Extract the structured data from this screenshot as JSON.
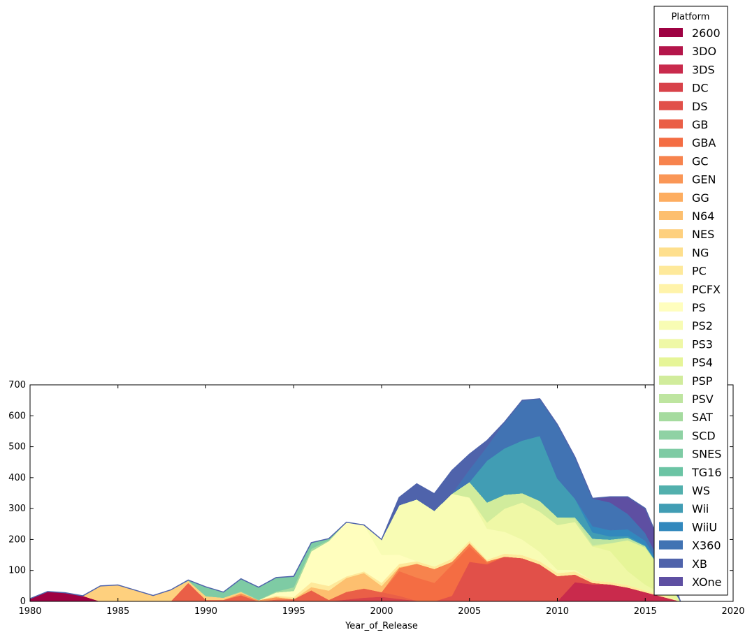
{
  "chart_data": {
    "type": "area",
    "stacked": true,
    "xlabel": "Year_of_Release",
    "ylabel": "",
    "xlim": [
      1980,
      2020
    ],
    "ylim": [
      0,
      700
    ],
    "x_ticks": [
      "1980",
      "1985",
      "1990",
      "1995",
      "2000",
      "2005",
      "2010",
      "2015",
      "2020"
    ],
    "y_ticks": [
      "0",
      "100",
      "200",
      "300",
      "400",
      "500",
      "600",
      "700"
    ],
    "grid": false,
    "legend": {
      "title": "Platform",
      "placement": "top-right"
    },
    "x": [
      1980,
      1981,
      1982,
      1983,
      1984,
      1985,
      1986,
      1987,
      1988,
      1989,
      1990,
      1991,
      1992,
      1993,
      1994,
      1995,
      1996,
      1997,
      1998,
      1999,
      2000,
      2001,
      2002,
      2003,
      2004,
      2005,
      2006,
      2007,
      2008,
      2009,
      2010,
      2011,
      2012,
      2013,
      2014,
      2015,
      2016,
      2017
    ],
    "series": [
      {
        "name": "2600",
        "color": "#9e0142",
        "values": [
          9,
          32,
          28,
          18,
          0,
          0,
          0,
          0,
          0,
          0,
          0,
          0,
          0,
          0,
          0,
          0,
          0,
          0,
          0,
          0,
          0,
          0,
          0,
          0,
          0,
          0,
          0,
          0,
          0,
          0,
          0,
          0,
          0,
          0,
          0,
          0,
          0,
          0
        ]
      },
      {
        "name": "3DO",
        "color": "#b4154a",
        "values": [
          0,
          0,
          0,
          0,
          0,
          0,
          0,
          0,
          0,
          0,
          0,
          0,
          0,
          0,
          1,
          2,
          1,
          0,
          0,
          0,
          0,
          0,
          0,
          0,
          0,
          0,
          0,
          0,
          0,
          0,
          0,
          0,
          0,
          0,
          0,
          0,
          0,
          0
        ]
      },
      {
        "name": "3DS",
        "color": "#c92a4c",
        "values": [
          0,
          0,
          0,
          0,
          0,
          0,
          0,
          0,
          0,
          0,
          0,
          0,
          0,
          0,
          0,
          0,
          0,
          0,
          0,
          0,
          0,
          0,
          0,
          0,
          0,
          0,
          0,
          0,
          0,
          0,
          0,
          62,
          55,
          55,
          45,
          30,
          15,
          0
        ]
      },
      {
        "name": "DC",
        "color": "#d8424a",
        "values": [
          0,
          0,
          0,
          0,
          0,
          0,
          0,
          0,
          0,
          0,
          0,
          0,
          0,
          0,
          0,
          0,
          0,
          0,
          6,
          12,
          15,
          8,
          2,
          0,
          0,
          0,
          0,
          0,
          0,
          0,
          0,
          0,
          0,
          0,
          0,
          0,
          0,
          0
        ]
      },
      {
        "name": "DS",
        "color": "#e15049",
        "values": [
          0,
          0,
          0,
          0,
          0,
          0,
          0,
          0,
          0,
          0,
          0,
          0,
          0,
          0,
          0,
          0,
          0,
          0,
          0,
          0,
          0,
          0,
          0,
          0,
          18,
          128,
          120,
          145,
          140,
          120,
          82,
          25,
          5,
          0,
          0,
          0,
          0,
          0
        ]
      },
      {
        "name": "GB",
        "color": "#ea5f47",
        "values": [
          0,
          0,
          0,
          0,
          0,
          0,
          0,
          0,
          0,
          60,
          5,
          5,
          20,
          0,
          5,
          5,
          35,
          5,
          25,
          30,
          15,
          10,
          0,
          0,
          0,
          0,
          0,
          0,
          0,
          0,
          0,
          0,
          0,
          0,
          0,
          0,
          0,
          0
        ]
      },
      {
        "name": "GBA",
        "color": "#f46d43",
        "values": [
          0,
          0,
          0,
          0,
          0,
          0,
          0,
          0,
          0,
          0,
          0,
          0,
          0,
          0,
          0,
          0,
          0,
          0,
          0,
          0,
          0,
          80,
          75,
          60,
          100,
          50,
          5,
          0,
          0,
          0,
          0,
          0,
          0,
          0,
          0,
          0,
          0,
          0
        ]
      },
      {
        "name": "GC",
        "color": "#f7834d",
        "values": [
          0,
          0,
          0,
          0,
          0,
          0,
          0,
          0,
          0,
          0,
          0,
          0,
          0,
          0,
          0,
          0,
          0,
          0,
          0,
          0,
          0,
          10,
          45,
          45,
          10,
          10,
          5,
          0,
          0,
          0,
          0,
          0,
          0,
          0,
          0,
          0,
          0,
          0
        ]
      },
      {
        "name": "GEN",
        "color": "#fa9656",
        "values": [
          0,
          0,
          0,
          0,
          0,
          0,
          0,
          0,
          0,
          0,
          0,
          0,
          6,
          4,
          8,
          0,
          0,
          0,
          0,
          0,
          0,
          0,
          0,
          0,
          0,
          0,
          0,
          0,
          0,
          0,
          0,
          0,
          0,
          0,
          0,
          0,
          0,
          0
        ]
      },
      {
        "name": "GG",
        "color": "#fdad60",
        "values": [
          0,
          0,
          0,
          0,
          0,
          0,
          0,
          0,
          0,
          0,
          0,
          0,
          0,
          0,
          0,
          0,
          0,
          0,
          0,
          0,
          0,
          0,
          0,
          0,
          0,
          0,
          0,
          0,
          0,
          0,
          0,
          0,
          0,
          0,
          0,
          0,
          0,
          0
        ]
      },
      {
        "name": "N64",
        "color": "#fdbf6f",
        "values": [
          0,
          0,
          0,
          0,
          0,
          0,
          0,
          0,
          0,
          0,
          0,
          0,
          0,
          0,
          0,
          0,
          10,
          30,
          45,
          50,
          20,
          3,
          0,
          0,
          0,
          0,
          0,
          0,
          0,
          0,
          0,
          0,
          0,
          0,
          0,
          0,
          0,
          0
        ]
      },
      {
        "name": "NES",
        "color": "#fed07e",
        "values": [
          0,
          0,
          0,
          0,
          50,
          53,
          36,
          19,
          37,
          7,
          12,
          7,
          5,
          0,
          0,
          0,
          0,
          0,
          0,
          0,
          0,
          0,
          0,
          0,
          0,
          0,
          0,
          0,
          0,
          0,
          0,
          0,
          0,
          0,
          0,
          0,
          0,
          0
        ]
      },
      {
        "name": "NG",
        "color": "#fedf8d",
        "values": [
          0,
          0,
          0,
          0,
          0,
          0,
          0,
          0,
          0,
          0,
          0,
          0,
          0,
          0,
          2,
          2,
          1,
          0,
          0,
          0,
          0,
          0,
          0,
          0,
          0,
          0,
          0,
          0,
          0,
          0,
          0,
          0,
          0,
          0,
          0,
          0,
          0,
          0
        ]
      },
      {
        "name": "PC",
        "color": "#fee99b",
        "values": [
          0,
          0,
          0,
          0,
          0,
          0,
          0,
          0,
          0,
          0,
          0,
          0,
          0,
          0,
          3,
          5,
          15,
          15,
          5,
          5,
          10,
          10,
          8,
          8,
          10,
          8,
          5,
          10,
          10,
          10,
          10,
          10,
          8,
          8,
          8,
          6,
          4,
          0
        ]
      },
      {
        "name": "PCFX",
        "color": "#fff3aa",
        "values": [
          0,
          0,
          0,
          0,
          0,
          0,
          0,
          0,
          0,
          0,
          0,
          0,
          0,
          0,
          0,
          0,
          0,
          0,
          0,
          0,
          0,
          0,
          0,
          0,
          0,
          0,
          0,
          0,
          0,
          0,
          0,
          0,
          0,
          0,
          0,
          0,
          0,
          0
        ]
      },
      {
        "name": "PS",
        "color": "#fffebe",
        "values": [
          0,
          0,
          0,
          0,
          0,
          0,
          0,
          0,
          0,
          0,
          0,
          0,
          0,
          0,
          10,
          20,
          100,
          145,
          175,
          150,
          90,
          30,
          0,
          0,
          0,
          0,
          0,
          0,
          0,
          0,
          0,
          0,
          0,
          0,
          0,
          0,
          0,
          0
        ]
      },
      {
        "name": "PS2",
        "color": "#f8fcb4",
        "values": [
          0,
          0,
          0,
          0,
          0,
          0,
          0,
          0,
          0,
          0,
          0,
          0,
          0,
          0,
          0,
          0,
          0,
          0,
          0,
          0,
          50,
          160,
          200,
          180,
          210,
          140,
          100,
          70,
          50,
          30,
          10,
          5,
          0,
          0,
          0,
          0,
          0,
          0
        ]
      },
      {
        "name": "PS3",
        "color": "#eff8a6",
        "values": [
          0,
          0,
          0,
          0,
          0,
          0,
          0,
          0,
          0,
          0,
          0,
          0,
          0,
          0,
          0,
          0,
          0,
          0,
          0,
          0,
          0,
          0,
          0,
          0,
          0,
          0,
          20,
          75,
          120,
          130,
          145,
          155,
          110,
          100,
          45,
          18,
          5,
          0
        ]
      },
      {
        "name": "PS4",
        "color": "#e6f598",
        "values": [
          0,
          0,
          0,
          0,
          0,
          0,
          0,
          0,
          0,
          0,
          0,
          0,
          0,
          0,
          0,
          0,
          0,
          0,
          0,
          0,
          0,
          0,
          0,
          0,
          0,
          0,
          0,
          0,
          0,
          0,
          0,
          0,
          0,
          25,
          100,
          120,
          70,
          0
        ]
      },
      {
        "name": "PSP",
        "color": "#d1ec9c",
        "values": [
          0,
          0,
          0,
          0,
          0,
          0,
          0,
          0,
          0,
          0,
          0,
          0,
          0,
          0,
          0,
          0,
          0,
          0,
          0,
          0,
          0,
          0,
          0,
          0,
          0,
          50,
          65,
          45,
          30,
          35,
          25,
          10,
          5,
          0,
          0,
          0,
          0,
          0
        ]
      },
      {
        "name": "PSV",
        "color": "#bee5a0",
        "values": [
          0,
          0,
          0,
          0,
          0,
          0,
          0,
          0,
          0,
          0,
          0,
          0,
          0,
          0,
          0,
          0,
          0,
          0,
          0,
          0,
          0,
          0,
          0,
          0,
          0,
          0,
          0,
          0,
          0,
          0,
          0,
          5,
          20,
          12,
          8,
          5,
          2,
          0
        ]
      },
      {
        "name": "SAT",
        "color": "#a5db9f",
        "values": [
          0,
          0,
          0,
          0,
          0,
          0,
          0,
          0,
          0,
          0,
          0,
          0,
          0,
          0,
          3,
          12,
          8,
          3,
          0,
          0,
          0,
          0,
          0,
          0,
          0,
          0,
          0,
          0,
          0,
          0,
          0,
          0,
          0,
          0,
          0,
          0,
          0,
          0
        ]
      },
      {
        "name": "SCD",
        "color": "#8fd2a4",
        "values": [
          0,
          0,
          0,
          0,
          0,
          0,
          0,
          0,
          0,
          0,
          0,
          0,
          2,
          2,
          0,
          0,
          0,
          0,
          0,
          0,
          0,
          0,
          0,
          0,
          0,
          0,
          0,
          0,
          0,
          0,
          0,
          0,
          0,
          0,
          0,
          0,
          0,
          0
        ]
      },
      {
        "name": "SNES",
        "color": "#7ecba4",
        "values": [
          0,
          0,
          0,
          0,
          0,
          0,
          0,
          0,
          0,
          2,
          30,
          18,
          40,
          40,
          45,
          35,
          20,
          5,
          0,
          0,
          0,
          0,
          0,
          0,
          0,
          0,
          0,
          0,
          0,
          0,
          0,
          0,
          0,
          0,
          0,
          0,
          0,
          0
        ]
      },
      {
        "name": "TG16",
        "color": "#6bc4a4",
        "values": [
          0,
          0,
          0,
          0,
          0,
          0,
          0,
          0,
          0,
          0,
          0,
          0,
          0,
          0,
          0,
          0,
          0,
          0,
          0,
          0,
          0,
          0,
          0,
          0,
          0,
          0,
          0,
          0,
          0,
          0,
          0,
          0,
          0,
          0,
          0,
          0,
          0,
          0
        ]
      },
      {
        "name": "WS",
        "color": "#52b0ad",
        "values": [
          0,
          0,
          0,
          0,
          0,
          0,
          0,
          0,
          0,
          0,
          0,
          0,
          0,
          0,
          0,
          0,
          0,
          0,
          0,
          0,
          0,
          0,
          0,
          0,
          0,
          0,
          0,
          0,
          0,
          0,
          0,
          0,
          0,
          0,
          0,
          0,
          0,
          0
        ]
      },
      {
        "name": "Wii",
        "color": "#419db4",
        "values": [
          0,
          0,
          0,
          0,
          0,
          0,
          0,
          0,
          0,
          0,
          0,
          0,
          0,
          0,
          0,
          0,
          0,
          0,
          0,
          0,
          0,
          0,
          0,
          0,
          0,
          0,
          135,
          150,
          170,
          210,
          125,
          60,
          20,
          10,
          5,
          2,
          0,
          0
        ]
      },
      {
        "name": "WiiU",
        "color": "#3288bd",
        "values": [
          0,
          0,
          0,
          0,
          0,
          0,
          0,
          0,
          0,
          0,
          0,
          0,
          0,
          0,
          0,
          0,
          0,
          0,
          0,
          0,
          0,
          0,
          0,
          0,
          0,
          0,
          0,
          0,
          0,
          0,
          0,
          0,
          20,
          20,
          22,
          15,
          5,
          0
        ]
      },
      {
        "name": "X360",
        "color": "#4173b3",
        "values": [
          0,
          0,
          0,
          0,
          0,
          0,
          0,
          0,
          0,
          0,
          0,
          0,
          0,
          0,
          0,
          0,
          0,
          0,
          0,
          0,
          0,
          0,
          0,
          0,
          0,
          40,
          45,
          85,
          130,
          120,
          175,
          135,
          90,
          90,
          50,
          25,
          10,
          0
        ]
      },
      {
        "name": "XB",
        "color": "#4f63ab",
        "values": [
          0,
          0,
          0,
          0,
          0,
          0,
          0,
          0,
          0,
          0,
          0,
          0,
          0,
          0,
          0,
          0,
          0,
          0,
          0,
          0,
          0,
          25,
          50,
          55,
          75,
          50,
          20,
          0,
          0,
          0,
          0,
          0,
          0,
          0,
          0,
          0,
          0,
          0
        ]
      },
      {
        "name": "XOne",
        "color": "#5e4fa2",
        "values": [
          0,
          0,
          0,
          0,
          0,
          0,
          0,
          0,
          0,
          0,
          0,
          0,
          0,
          0,
          0,
          0,
          0,
          0,
          0,
          0,
          0,
          0,
          0,
          0,
          0,
          0,
          0,
          0,
          0,
          0,
          0,
          0,
          0,
          18,
          55,
          80,
          55,
          0
        ]
      }
    ]
  }
}
